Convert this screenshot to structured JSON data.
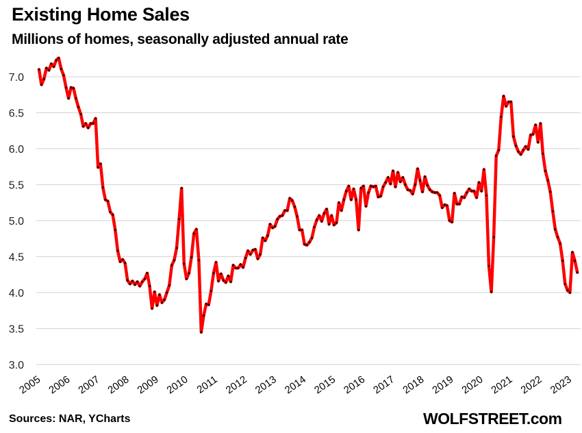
{
  "chart_data": {
    "type": "line",
    "title": "Existing Home Sales",
    "subtitle": "Millions of homes, seasonally adjusted annual rate",
    "xlabel": "",
    "ylabel": "",
    "ylim": [
      3.0,
      7.0
    ],
    "y_ticks": [
      "3.0",
      "3.5",
      "4.0",
      "4.5",
      "5.0",
      "5.5",
      "6.0",
      "6.5",
      "7.0"
    ],
    "x_ticks": [
      "2005",
      "2006",
      "2007",
      "2008",
      "2009",
      "2010",
      "2011",
      "2012",
      "2013",
      "2014",
      "2015",
      "2016",
      "2017",
      "2018",
      "2019",
      "2020",
      "2021",
      "2022",
      "2023"
    ],
    "grid": "horizontal",
    "frequency": "monthly",
    "line_color": "#ff0000",
    "marker_color": "#000000",
    "values_by_year": {
      "2005": [
        7.1,
        6.89,
        6.97,
        7.12,
        7.09,
        7.18,
        7.14,
        7.23,
        7.26,
        7.11,
        7.02,
        6.85
      ],
      "2006": [
        6.7,
        6.85,
        6.84,
        6.7,
        6.58,
        6.48,
        6.31,
        6.35,
        6.29,
        6.35,
        6.35,
        6.42
      ],
      "2007": [
        5.74,
        5.79,
        5.46,
        5.29,
        5.27,
        5.12,
        5.08,
        4.87,
        4.58,
        4.43,
        4.46,
        4.41
      ],
      "2008": [
        4.17,
        4.12,
        4.16,
        4.11,
        4.15,
        4.09,
        4.15,
        4.19,
        4.27,
        4.09,
        3.78,
        4.01
      ],
      "2009": [
        3.82,
        3.97,
        3.86,
        3.9,
        4.0,
        4.1,
        4.38,
        4.45,
        4.62,
        5.02,
        5.45,
        4.4
      ],
      "2010": [
        4.19,
        4.27,
        4.49,
        4.82,
        4.88,
        4.45,
        3.45,
        3.68,
        3.84,
        3.83,
        4.02,
        4.27
      ],
      "2011": [
        4.42,
        4.16,
        4.26,
        4.17,
        4.14,
        4.23,
        4.15,
        4.38,
        4.34,
        4.34,
        4.39,
        4.35
      ],
      "2012": [
        4.48,
        4.58,
        4.53,
        4.59,
        4.6,
        4.47,
        4.53,
        4.76,
        4.72,
        4.79,
        4.95,
        4.9
      ],
      "2013": [
        4.92,
        5.02,
        5.06,
        5.07,
        5.14,
        5.14,
        5.31,
        5.28,
        5.19,
        5.06,
        4.87,
        4.87
      ],
      "2014": [
        4.67,
        4.66,
        4.7,
        4.76,
        4.91,
        5.01,
        5.07,
        4.99,
        5.1,
        5.16,
        4.95,
        5.07
      ],
      "2015": [
        4.94,
        4.97,
        5.25,
        5.14,
        5.29,
        5.41,
        5.48,
        5.29,
        5.44,
        5.29,
        4.87,
        5.45
      ],
      "2016": [
        5.48,
        5.2,
        5.39,
        5.48,
        5.47,
        5.48,
        5.33,
        5.34,
        5.47,
        5.53,
        5.6,
        5.51
      ],
      "2017": [
        5.69,
        5.47,
        5.67,
        5.54,
        5.6,
        5.5,
        5.43,
        5.42,
        5.37,
        5.5,
        5.72,
        5.56
      ],
      "2018": [
        5.4,
        5.61,
        5.49,
        5.43,
        5.4,
        5.39,
        5.39,
        5.35,
        5.18,
        5.22,
        5.21,
        5.0
      ],
      "2019": [
        4.98,
        5.38,
        5.23,
        5.23,
        5.33,
        5.32,
        5.39,
        5.44,
        5.41,
        5.41,
        5.32,
        5.53
      ],
      "2020": [
        5.41,
        5.71,
        5.35,
        4.37,
        4.01,
        4.77,
        5.9,
        5.98,
        6.44,
        6.73,
        6.59,
        6.65
      ],
      "2021": [
        6.65,
        6.17,
        6.04,
        5.96,
        5.92,
        5.98,
        6.03,
        5.99,
        6.19,
        6.2,
        6.33,
        6.09
      ],
      "2022": [
        6.35,
        5.93,
        5.69,
        5.56,
        5.4,
        5.13,
        4.88,
        4.77,
        4.68,
        4.44,
        4.12,
        4.03
      ],
      "2023": [
        4.0,
        4.56,
        4.44,
        4.28
      ]
    }
  },
  "footer": {
    "source": "Sources: NAR, YCharts",
    "brand": "WOLFSTREET.com"
  }
}
